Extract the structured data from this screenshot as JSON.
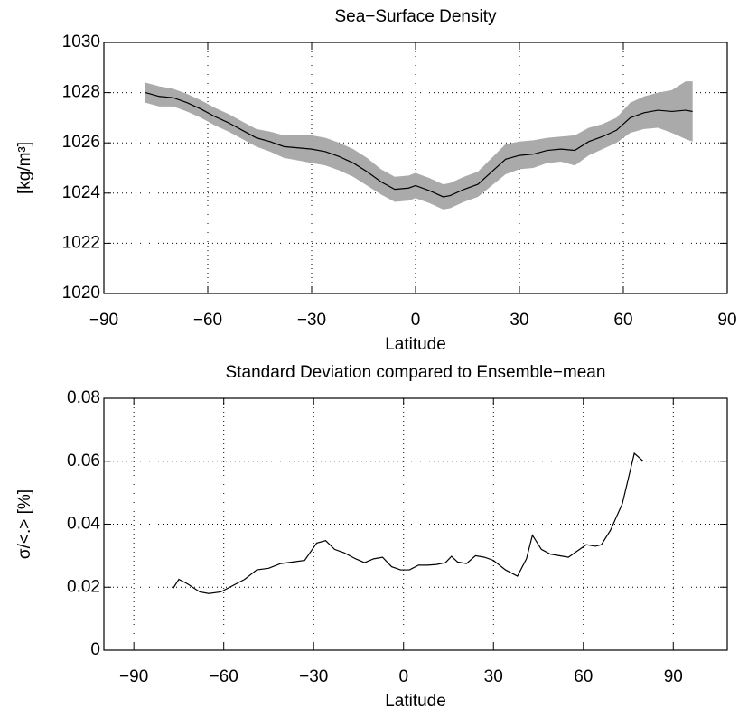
{
  "chart_data": [
    {
      "type": "line",
      "title": "Sea−Surface Density",
      "xlabel": "Latitude",
      "ylabel": "[kg/m³]",
      "x": [
        -78,
        -74,
        -70,
        -66,
        -62,
        -58,
        -54,
        -50,
        -46,
        -42,
        -38,
        -34,
        -30,
        -26,
        -22,
        -18,
        -14,
        -10,
        -6,
        -2,
        0,
        4,
        8,
        10,
        14,
        18,
        22,
        26,
        30,
        34,
        38,
        42,
        46,
        50,
        54,
        58,
        62,
        66,
        70,
        74,
        78,
        80
      ],
      "series": [
        {
          "color": "#000000",
          "band_color": "#aaaaaa",
          "values": [
            1028.0,
            1027.85,
            1027.8,
            1027.6,
            1027.35,
            1027.05,
            1026.8,
            1026.5,
            1026.2,
            1026.05,
            1025.85,
            1025.8,
            1025.75,
            1025.65,
            1025.45,
            1025.2,
            1024.85,
            1024.45,
            1024.15,
            1024.2,
            1024.3,
            1024.1,
            1023.85,
            1023.9,
            1024.15,
            1024.35,
            1024.85,
            1025.35,
            1025.5,
            1025.55,
            1025.7,
            1025.75,
            1025.7,
            1026.05,
            1026.25,
            1026.5,
            1027.0,
            1027.2,
            1027.3,
            1027.25,
            1027.3,
            1027.25
          ],
          "upper": [
            1028.4,
            1028.25,
            1028.15,
            1027.95,
            1027.7,
            1027.4,
            1027.15,
            1026.85,
            1026.55,
            1026.45,
            1026.3,
            1026.3,
            1026.3,
            1026.2,
            1026.0,
            1025.75,
            1025.4,
            1024.95,
            1024.65,
            1024.7,
            1024.8,
            1024.6,
            1024.35,
            1024.4,
            1024.65,
            1024.85,
            1025.4,
            1025.95,
            1026.05,
            1026.1,
            1026.2,
            1026.25,
            1026.3,
            1026.6,
            1026.75,
            1027.0,
            1027.6,
            1027.85,
            1028.0,
            1028.1,
            1028.45,
            1028.45
          ],
          "lower": [
            1027.6,
            1027.45,
            1027.45,
            1027.25,
            1027.0,
            1026.7,
            1026.45,
            1026.15,
            1025.85,
            1025.65,
            1025.4,
            1025.3,
            1025.2,
            1025.1,
            1024.9,
            1024.65,
            1024.3,
            1023.95,
            1023.65,
            1023.7,
            1023.8,
            1023.6,
            1023.35,
            1023.4,
            1023.65,
            1023.85,
            1024.3,
            1024.75,
            1024.95,
            1025.0,
            1025.2,
            1025.25,
            1025.1,
            1025.5,
            1025.75,
            1026.0,
            1026.4,
            1026.55,
            1026.6,
            1026.4,
            1026.15,
            1026.05
          ]
        }
      ],
      "xlim": [
        -90,
        90
      ],
      "xticks": [
        {
          "value": -90,
          "label": "−90"
        },
        {
          "value": -60,
          "label": "−60"
        },
        {
          "value": -30,
          "label": "−30"
        },
        0,
        30,
        60,
        90
      ],
      "ylim": [
        1020,
        1030
      ],
      "yticks": [
        1020,
        1022,
        1024,
        1026,
        1028,
        1030
      ],
      "grid": true
    },
    {
      "type": "line",
      "title": "Standard Deviation compared to Ensemble−mean",
      "xlabel": "Latitude",
      "ylabel": "σ/<.> [%]",
      "x": [
        -77,
        -75,
        -72,
        -68,
        -65,
        -61,
        -57,
        -53,
        -49,
        -45,
        -41,
        -37,
        -33,
        -29,
        -26,
        -23,
        -20,
        -16,
        -13,
        -10,
        -7,
        -4,
        -1,
        2,
        5,
        8,
        11,
        14,
        16,
        18,
        21,
        24,
        27,
        30,
        34,
        38,
        41,
        43,
        46,
        49,
        52,
        55,
        58,
        61,
        64,
        66,
        69,
        73,
        77,
        80
      ],
      "series": [
        {
          "color": "#000000",
          "values": [
            0.0195,
            0.0225,
            0.021,
            0.0185,
            0.018,
            0.0185,
            0.0205,
            0.0225,
            0.0255,
            0.026,
            0.0275,
            0.028,
            0.0285,
            0.034,
            0.0348,
            0.032,
            0.031,
            0.029,
            0.0278,
            0.029,
            0.0295,
            0.0265,
            0.0255,
            0.0255,
            0.027,
            0.027,
            0.0272,
            0.0278,
            0.0298,
            0.028,
            0.0275,
            0.03,
            0.0295,
            0.0285,
            0.0255,
            0.0235,
            0.029,
            0.0365,
            0.032,
            0.0305,
            0.03,
            0.0295,
            0.0315,
            0.0335,
            0.033,
            0.0335,
            0.038,
            0.0465,
            0.0625,
            0.06
          ]
        }
      ],
      "xlim": [
        -100,
        108
      ],
      "xticks": [
        {
          "value": -90,
          "label": "−90"
        },
        {
          "value": -60,
          "label": "−60"
        },
        {
          "value": -30,
          "label": "−30"
        },
        0,
        30,
        60,
        90
      ],
      "ylim": [
        0,
        0.08
      ],
      "yticks": [
        0,
        0.02,
        0.04,
        0.06,
        0.08
      ],
      "grid": true
    }
  ]
}
